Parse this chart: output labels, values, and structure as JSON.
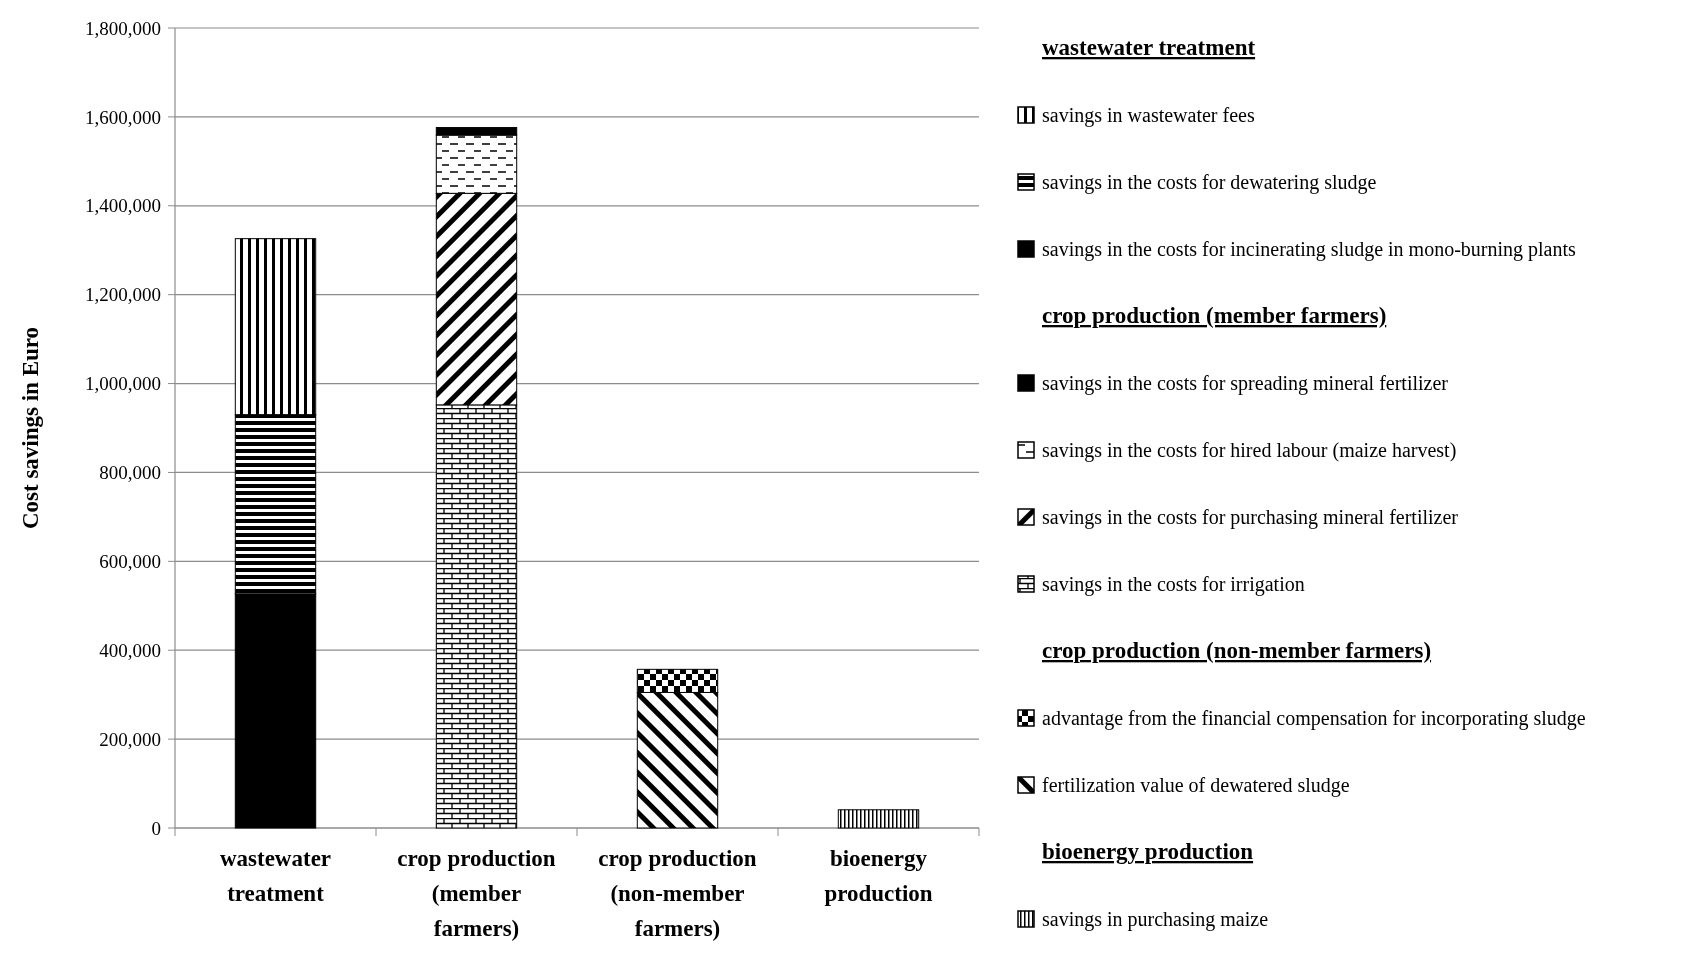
{
  "chart_data": {
    "type": "bar",
    "stacked": true,
    "ylabel": "Cost savings in Euro",
    "categories": [
      "wastewater treatment",
      "crop production (member farmers)",
      "crop production (non-member farmers)",
      "bioenergy production"
    ],
    "series": [
      {
        "name": "savings in the costs for incinerating sludge in mono-burning plants",
        "color": "#000000",
        "values": [
          527000,
          null,
          null,
          null
        ]
      },
      {
        "name": "savings in the costs for dewatering sludge",
        "color": "#000000",
        "values": [
          403000,
          null,
          null,
          null
        ]
      },
      {
        "name": "savings in wastewater fees",
        "color": "#000000",
        "values": [
          396000,
          null,
          null,
          null
        ]
      },
      {
        "name": "savings in the costs for irrigation",
        "color": "#000000",
        "values": [
          null,
          952000,
          null,
          null
        ]
      },
      {
        "name": "savings in the costs for purchasing mineral fertilizer",
        "color": "#000000",
        "values": [
          null,
          476000,
          null,
          null
        ]
      },
      {
        "name": "savings in the costs for hired labour (maize harvest)",
        "color": "#000000",
        "values": [
          null,
          131000,
          null,
          null
        ]
      },
      {
        "name": "savings in the costs for spreading mineral fertilizer",
        "color": "#000000",
        "values": [
          null,
          17000,
          null,
          null
        ]
      },
      {
        "name": "fertilization value of dewatered sludge",
        "color": "#000000",
        "values": [
          null,
          null,
          305000,
          null
        ]
      },
      {
        "name": "advantage from the financial compensation for incorporating sludge",
        "color": "#000000",
        "values": [
          null,
          null,
          52000,
          null
        ]
      },
      {
        "name": "savings in purchasing maize",
        "color": "#000000",
        "values": [
          null,
          null,
          null,
          41000
        ]
      }
    ],
    "annotations": [
      "wastewater treatment",
      "crop production (member farmers)",
      "crop production (non-member farmers)",
      "bioenergy production"
    ],
    "ylim": [
      0,
      1800000
    ],
    "yticks": [
      0,
      {
        "value": 200000,
        "label": "200,000"
      },
      {
        "value": 400000,
        "label": "400,000"
      },
      {
        "value": 600000,
        "label": "600,000"
      },
      {
        "value": 800000,
        "label": "800,000"
      },
      {
        "value": 1000000,
        "label": "1,000,000"
      },
      {
        "value": 1200000,
        "label": "1,200,000"
      },
      {
        "value": 1400000,
        "label": "1,400,000"
      },
      {
        "value": 1600000,
        "label": "1,600,000"
      },
      {
        "value": 1800000,
        "label": "1,800,000"
      }
    ],
    "grid": "y",
    "legend": "right"
  }
}
